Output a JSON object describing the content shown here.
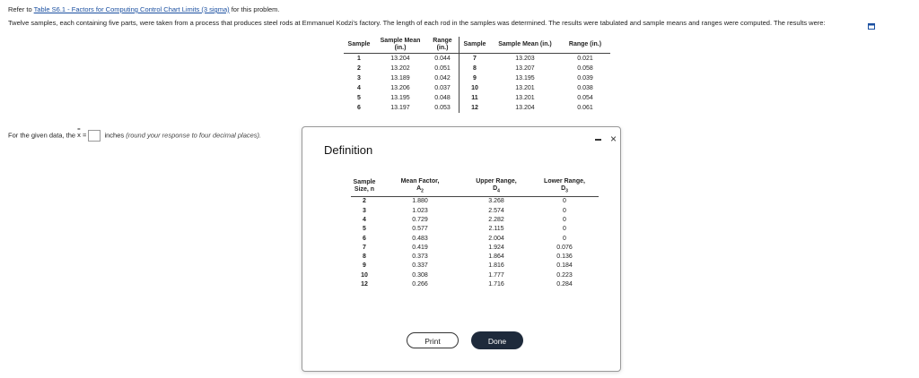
{
  "header": {
    "refer_prefix": "Refer to ",
    "refer_link": "Table S6.1 - Factors for Computing Control Chart Limits (3 sigma)",
    "refer_suffix": " for this problem.",
    "problem_text": "Twelve samples, each containing five parts, were taken from a process that produces steel rods at Emmanuel Kodzi's factory. The length of each rod in the samples was determined. The results were tabulated and sample means and ranges were computed. The results were:"
  },
  "icons": {
    "expand": "expand-icon",
    "minimize": "minimize-icon",
    "close": "close-icon"
  },
  "data_table": {
    "headers": {
      "sample": "Sample",
      "mean_l1": "Sample Mean",
      "mean_l2": "(in.)",
      "range_l1": "Range",
      "range_l2": "(in.)",
      "sample2": "Sample",
      "mean2": "Sample Mean (in.)",
      "range2": "Range (in.)"
    },
    "rows": [
      {
        "s1": "1",
        "m1": "13.204",
        "r1": "0.044",
        "s2": "7",
        "m2": "13.203",
        "r2": "0.021"
      },
      {
        "s1": "2",
        "m1": "13.202",
        "r1": "0.051",
        "s2": "8",
        "m2": "13.207",
        "r2": "0.058"
      },
      {
        "s1": "3",
        "m1": "13.189",
        "r1": "0.042",
        "s2": "9",
        "m2": "13.195",
        "r2": "0.039"
      },
      {
        "s1": "4",
        "m1": "13.206",
        "r1": "0.037",
        "s2": "10",
        "m2": "13.201",
        "r2": "0.038"
      },
      {
        "s1": "5",
        "m1": "13.195",
        "r1": "0.048",
        "s2": "11",
        "m2": "13.201",
        "r2": "0.054"
      },
      {
        "s1": "6",
        "m1": "13.197",
        "r1": "0.053",
        "s2": "12",
        "m2": "13.204",
        "r2": "0.061"
      }
    ]
  },
  "question": {
    "prefix": "For the given data, the ",
    "symbol": "x",
    "equals": " =",
    "answer_value": "",
    "unit": " inches ",
    "hint": "(round your response to four decimal places)."
  },
  "dialog": {
    "title": "Definition",
    "headers": {
      "size_l1": "Sample",
      "size_l2": "Size, n",
      "mean_l1": "Mean Factor,",
      "mean_sym": "A",
      "mean_sub": "2",
      "upper_l1": "Upper Range,",
      "upper_sym": "D",
      "upper_sub": "4",
      "lower_l1": "Lower Range,",
      "lower_sym": "D",
      "lower_sub": "3"
    },
    "rows": [
      {
        "n": "2",
        "a2": "1.880",
        "d4": "3.268",
        "d3": "0"
      },
      {
        "n": "3",
        "a2": "1.023",
        "d4": "2.574",
        "d3": "0"
      },
      {
        "n": "4",
        "a2": "0.729",
        "d4": "2.282",
        "d3": "0"
      },
      {
        "n": "5",
        "a2": "0.577",
        "d4": "2.115",
        "d3": "0"
      },
      {
        "n": "6",
        "a2": "0.483",
        "d4": "2.004",
        "d3": "0"
      },
      {
        "n": "7",
        "a2": "0.419",
        "d4": "1.924",
        "d3": "0.076"
      },
      {
        "n": "8",
        "a2": "0.373",
        "d4": "1.864",
        "d3": "0.136"
      },
      {
        "n": "9",
        "a2": "0.337",
        "d4": "1.816",
        "d3": "0.184"
      },
      {
        "n": "10",
        "a2": "0.308",
        "d4": "1.777",
        "d3": "0.223"
      },
      {
        "n": "12",
        "a2": "0.266",
        "d4": "1.716",
        "d3": "0.284"
      }
    ],
    "print_label": "Print",
    "done_label": "Done",
    "close_label": "×"
  }
}
